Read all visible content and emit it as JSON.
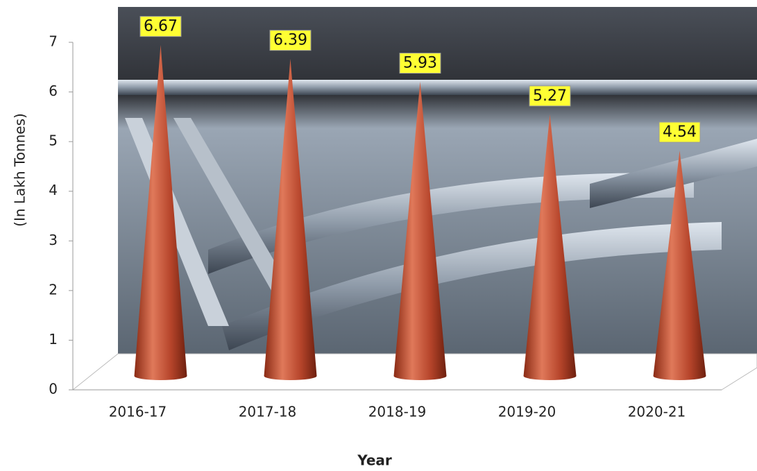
{
  "chart_data": {
    "type": "cone",
    "x_label": "Year",
    "y_label": "(In Lakh Tonnes)",
    "categories": [
      "2016-17",
      "2017-18",
      "2018-19",
      "2019-20",
      "2020-21"
    ],
    "values": [
      6.67,
      6.39,
      5.93,
      5.27,
      4.54
    ],
    "color": "#b5442a",
    "ylim": [
      0,
      7
    ],
    "yticks": [
      0,
      1,
      2,
      3,
      4,
      5,
      6,
      7
    ]
  }
}
